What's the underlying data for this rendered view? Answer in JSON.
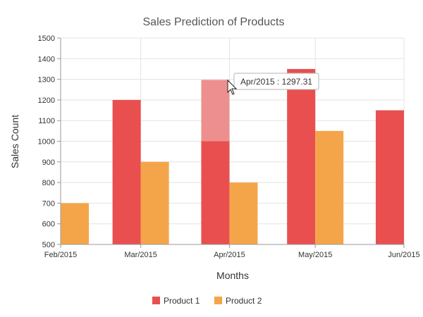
{
  "chart_data": {
    "type": "bar",
    "title": "Sales Prediction of Products",
    "xlabel": "Months",
    "ylabel": "Sales Count",
    "categories": [
      "Feb/2015",
      "Mar/2015",
      "Apr/2015",
      "May/2015",
      "Jun/2015"
    ],
    "x_dates": [
      "2015-02",
      "2015-03",
      "2015-04",
      "2015-05",
      "2015-06"
    ],
    "series": [
      {
        "name": "Product 1",
        "color": "#e94f4f",
        "values": [
          null,
          1200,
          1000,
          1350,
          1150
        ]
      },
      {
        "name": "Product 2",
        "color": "#f5a549",
        "values": [
          700,
          900,
          800,
          1050,
          null
        ]
      }
    ],
    "ylim": [
      500,
      1500
    ],
    "yticks": [
      500,
      600,
      700,
      800,
      900,
      1000,
      1100,
      1200,
      1300,
      1400,
      1500
    ],
    "grid": true,
    "legend_position": "bottom",
    "highlight": {
      "category": "Apr/2015",
      "series": "Product 1",
      "from": 1000,
      "to": 1297.31,
      "color": "#ee8f8f"
    },
    "tooltip": {
      "text": "Apr/2015 : 1297.31"
    }
  }
}
